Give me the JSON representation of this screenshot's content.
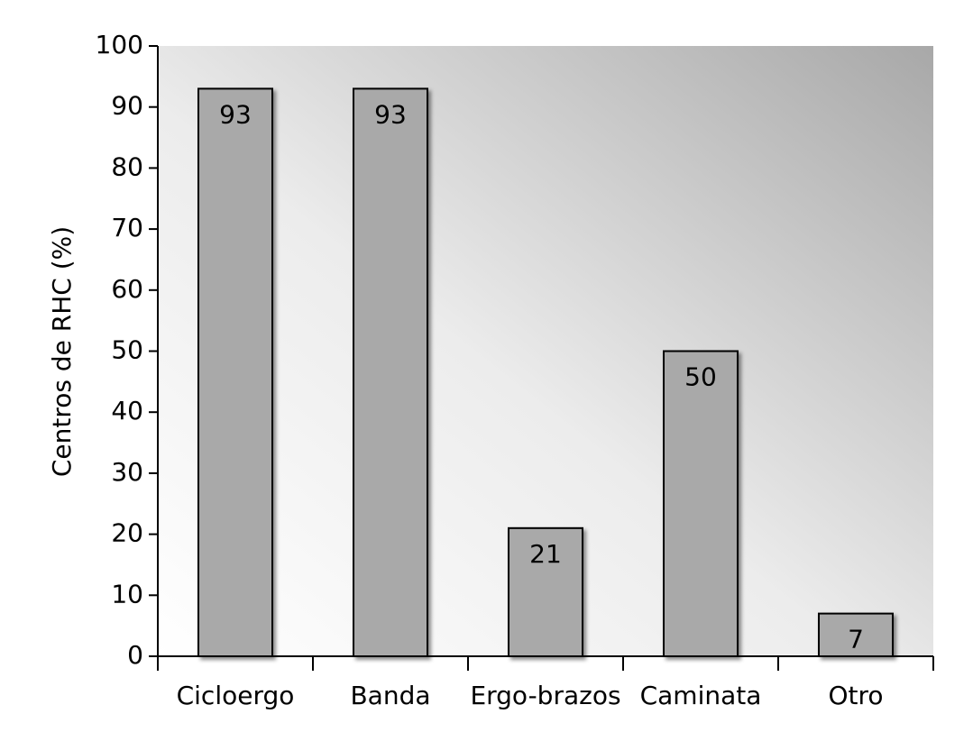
{
  "chart_data": {
    "type": "bar",
    "y_label": "Centros de RHC (%)",
    "categories": [
      "Cicloergo",
      "Banda",
      "Ergo-brazos",
      "Caminata",
      "Otro"
    ],
    "values": [
      93,
      93,
      21,
      50,
      7
    ],
    "color": "#a9a9a9",
    "ylim": [
      0,
      100
    ],
    "yticks": [
      0,
      10,
      20,
      30,
      40,
      50,
      60,
      70,
      80,
      90,
      100
    ]
  }
}
